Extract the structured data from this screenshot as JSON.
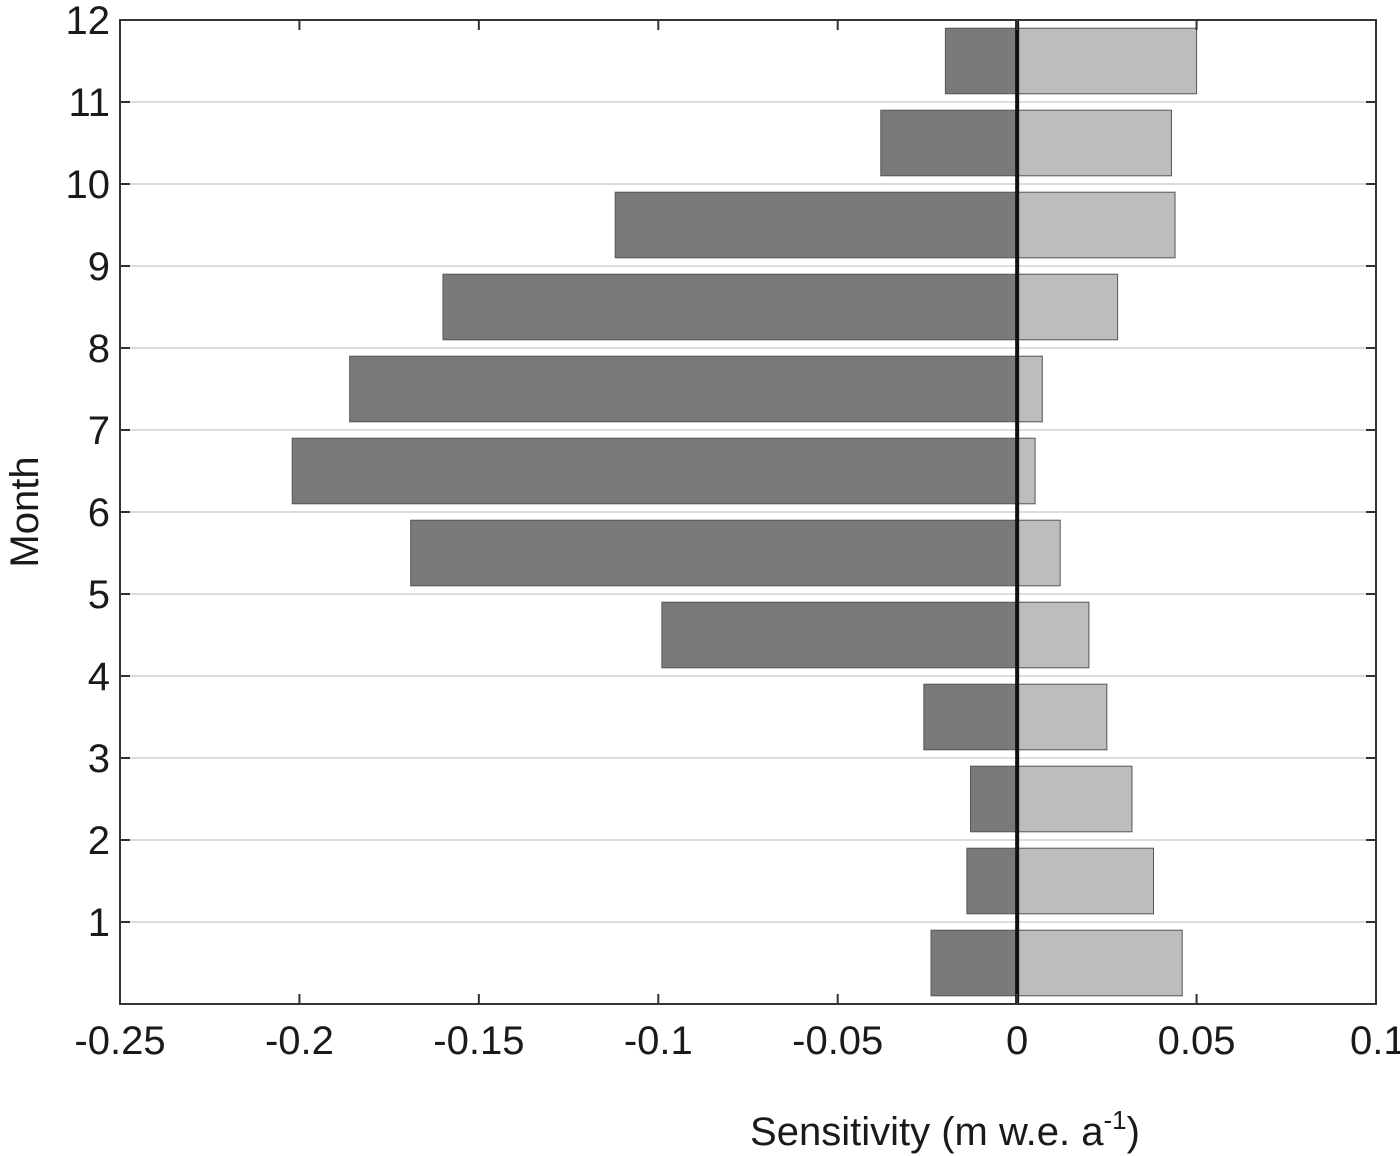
{
  "chart_data": {
    "type": "bar",
    "orientation": "horizontal",
    "xlabel": "Sensitivity (m w.e. a",
    "xlabel_superscript": "-1",
    "xlabel_close": ")",
    "ylabel": "Month",
    "xlim": [
      -0.25,
      0.1
    ],
    "ylim": [
      0,
      12
    ],
    "xticks": [
      -0.25,
      -0.2,
      -0.15,
      -0.1,
      -0.05,
      0,
      0.05,
      0.1
    ],
    "xtick_labels": [
      "-0.25",
      "-0.2",
      "-0.15",
      "-0.1",
      "-0.05",
      "0",
      "0.05",
      "0.1"
    ],
    "yticks": [
      1,
      2,
      3,
      4,
      5,
      6,
      7,
      8,
      9,
      10,
      11,
      12
    ],
    "ytick_labels": [
      "1",
      "2",
      "3",
      "4",
      "5",
      "6",
      "7",
      "8",
      "9",
      "10",
      "11",
      "12"
    ],
    "grid": "horizontal",
    "bar_centers": [
      0.5,
      1.5,
      2.5,
      3.5,
      4.5,
      5.5,
      6.5,
      7.5,
      8.5,
      9.5,
      10.5,
      11.5
    ],
    "series": [
      {
        "values": [
          -0.024,
          -0.014,
          -0.013,
          -0.026,
          -0.099,
          -0.169,
          -0.202,
          -0.186,
          -0.16,
          -0.112,
          -0.038,
          -0.02
        ],
        "color": "#7a7a7a"
      },
      {
        "values": [
          0.046,
          0.038,
          0.032,
          0.025,
          0.02,
          0.012,
          0.005,
          0.007,
          0.028,
          0.044,
          0.043,
          0.05
        ],
        "color": "#bdbdbd"
      }
    ],
    "zero_line_color": "#111111"
  }
}
